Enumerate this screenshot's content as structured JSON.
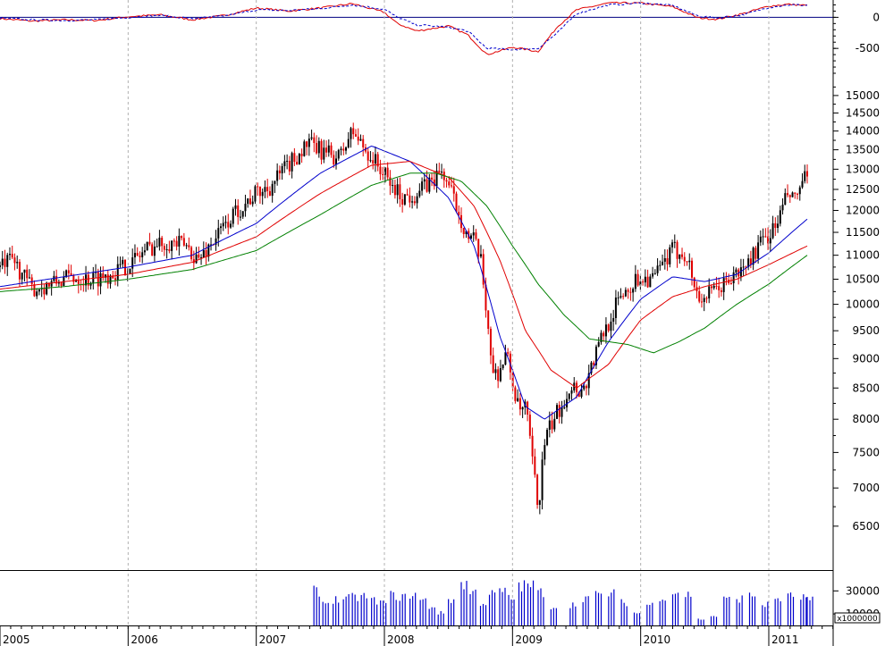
{
  "chart_data": [
    {
      "type": "line",
      "panel": "oscillator",
      "y_ticks": [
        0,
        -500
      ],
      "y_tick_labels": [
        "0",
        "-500"
      ],
      "ylim": [
        -900,
        250
      ],
      "colors": {
        "line": "#e00000",
        "signal": "#0000cc",
        "zero": "#000080"
      },
      "series": [
        {
          "style": "solid",
          "x": [
            2005.0,
            2005.25,
            2005.5,
            2005.75,
            2006.0,
            2006.25,
            2006.5,
            2006.75,
            2007.0,
            2007.25,
            2007.5,
            2007.75,
            2008.0,
            2008.1,
            2008.25,
            2008.5,
            2008.65,
            2008.8,
            2009.0,
            2009.2,
            2009.35,
            2009.5,
            2009.75,
            2010.0,
            2010.25,
            2010.45,
            2010.6,
            2010.8,
            2011.0,
            2011.15,
            2011.3
          ],
          "y": [
            -20,
            -60,
            -40,
            -50,
            10,
            40,
            -40,
            30,
            150,
            100,
            150,
            220,
            80,
            -100,
            -220,
            -140,
            -280,
            -600,
            -480,
            -550,
            -150,
            120,
            230,
            230,
            170,
            -10,
            -30,
            60,
            180,
            210,
            190
          ]
        },
        {
          "style": "dashed",
          "x": [
            2005.0,
            2005.25,
            2005.5,
            2005.75,
            2006.0,
            2006.25,
            2006.5,
            2006.75,
            2007.0,
            2007.25,
            2007.5,
            2007.75,
            2008.0,
            2008.1,
            2008.25,
            2008.5,
            2008.65,
            2008.8,
            2009.0,
            2009.2,
            2009.35,
            2009.5,
            2009.75,
            2010.0,
            2010.25,
            2010.45,
            2010.6,
            2010.8,
            2011.0,
            2011.15,
            2011.3
          ],
          "y": [
            -10,
            -40,
            -50,
            -40,
            0,
            30,
            -20,
            20,
            120,
            110,
            140,
            200,
            130,
            0,
            -120,
            -160,
            -220,
            -500,
            -520,
            -500,
            -250,
            60,
            200,
            230,
            190,
            20,
            -10,
            40,
            160,
            200,
            195
          ]
        }
      ]
    },
    {
      "type": "candlestick",
      "panel": "price",
      "x_ticks": [
        2005,
        2006,
        2007,
        2008,
        2009,
        2010,
        2011
      ],
      "x_tick_labels": [
        "2005",
        "2006",
        "2007",
        "2008",
        "2009",
        "2010",
        "2011"
      ],
      "xlim": [
        2005.0,
        2011.5
      ],
      "y_ticks": [
        6500,
        7000,
        7500,
        8000,
        8500,
        9000,
        9500,
        10000,
        10500,
        11000,
        11500,
        12000,
        12500,
        13000,
        13500,
        14000,
        14500,
        15000
      ],
      "y_tick_labels": [
        "6500",
        "7000",
        "7500",
        "8000",
        "8500",
        "9000",
        "9500",
        "10000",
        "10500",
        "11000",
        "11500",
        "12000",
        "12500",
        "13000",
        "13500",
        "14000",
        "14500",
        "15000"
      ],
      "ylim": [
        6000,
        15500
      ],
      "y_scale": "log",
      "grid": "vertical-dashed",
      "colors": {
        "up": "#000000",
        "down": "#e00000"
      },
      "close_path": {
        "x": [
          2005.0,
          2005.1,
          2005.25,
          2005.4,
          2005.55,
          2005.7,
          2005.85,
          2006.0,
          2006.15,
          2006.3,
          2006.45,
          2006.55,
          2006.7,
          2006.85,
          2007.0,
          2007.1,
          2007.25,
          2007.4,
          2007.55,
          2007.65,
          2007.75,
          2007.85,
          2007.95,
          2008.05,
          2008.15,
          2008.25,
          2008.35,
          2008.45,
          2008.55,
          2008.65,
          2008.7,
          2008.75,
          2008.8,
          2008.85,
          2008.9,
          2008.95,
          2009.0,
          2009.05,
          2009.1,
          2009.15,
          2009.2,
          2009.25,
          2009.3,
          2009.4,
          2009.45,
          2009.55,
          2009.7,
          2009.85,
          2010.0,
          2010.1,
          2010.25,
          2010.35,
          2010.45,
          2010.55,
          2010.65,
          2010.8,
          2010.95,
          2011.05,
          2011.15,
          2011.2,
          2011.25,
          2011.3
        ],
        "y": [
          10750,
          10900,
          10300,
          10400,
          10550,
          10500,
          10600,
          10800,
          11150,
          11300,
          11200,
          10900,
          11450,
          12000,
          12400,
          12550,
          13100,
          13650,
          13400,
          13300,
          14000,
          13500,
          13100,
          12600,
          12300,
          12400,
          12650,
          12950,
          12200,
          11400,
          11300,
          10900,
          9800,
          8700,
          8800,
          9100,
          8600,
          8100,
          8200,
          7450,
          6700,
          7650,
          7900,
          8300,
          8550,
          8450,
          9400,
          10200,
          10550,
          10500,
          11100,
          11050,
          10100,
          10200,
          10400,
          10700,
          11300,
          11600,
          12400,
          12200,
          12600,
          12800
        ]
      },
      "moving_averages": [
        {
          "color": "#0000cc",
          "x": [
            2005.0,
            2005.5,
            2006.0,
            2006.5,
            2007.0,
            2007.5,
            2007.9,
            2008.2,
            2008.5,
            2008.7,
            2008.9,
            2009.1,
            2009.25,
            2009.5,
            2009.75,
            2010.0,
            2010.25,
            2010.5,
            2010.75,
            2011.0,
            2011.3
          ],
          "y": [
            10350,
            10550,
            10750,
            11000,
            11700,
            12900,
            13600,
            13200,
            12300,
            11200,
            9400,
            8200,
            8000,
            8350,
            9300,
            10100,
            10550,
            10450,
            10600,
            11050,
            11800
          ]
        },
        {
          "color": "#e00000",
          "x": [
            2005.0,
            2005.5,
            2006.0,
            2006.5,
            2007.0,
            2007.5,
            2007.9,
            2008.2,
            2008.5,
            2008.7,
            2008.9,
            2009.1,
            2009.3,
            2009.5,
            2009.75,
            2010.0,
            2010.25,
            2010.5,
            2010.75,
            2011.0,
            2011.3
          ],
          "y": [
            10300,
            10450,
            10600,
            10850,
            11400,
            12400,
            13100,
            13200,
            12800,
            12100,
            10900,
            9500,
            8800,
            8500,
            8900,
            9700,
            10150,
            10350,
            10500,
            10800,
            11200
          ]
        },
        {
          "color": "#008000",
          "x": [
            2005.0,
            2005.5,
            2006.0,
            2006.5,
            2007.0,
            2007.5,
            2007.9,
            2008.2,
            2008.4,
            2008.6,
            2008.8,
            2009.0,
            2009.2,
            2009.4,
            2009.6,
            2009.9,
            2010.1,
            2010.3,
            2010.5,
            2010.75,
            2011.0,
            2011.3
          ],
          "y": [
            10250,
            10350,
            10500,
            10700,
            11100,
            11900,
            12600,
            12900,
            12900,
            12700,
            12100,
            11200,
            10400,
            9800,
            9350,
            9250,
            9100,
            9300,
            9550,
            10000,
            10400,
            11000
          ]
        }
      ]
    },
    {
      "type": "bar",
      "panel": "volume",
      "ylabel_multiplier": "x1000000",
      "y_ticks": [
        30000,
        10000
      ],
      "y_tick_labels": [
        "30000",
        "10000"
      ],
      "ylim": [
        0,
        45000
      ],
      "colors": {
        "bar": "#0000cc"
      },
      "x": [
        2007.45,
        2007.52,
        2007.6,
        2007.68,
        2007.75,
        2007.82,
        2007.9,
        2007.97,
        2008.05,
        2008.12,
        2008.2,
        2008.28,
        2008.35,
        2008.42,
        2008.5,
        2008.6,
        2008.67,
        2008.75,
        2008.82,
        2008.9,
        2008.97,
        2009.05,
        2009.12,
        2009.2,
        2009.3,
        2009.45,
        2009.55,
        2009.65,
        2009.75,
        2009.85,
        2009.95,
        2010.05,
        2010.15,
        2010.25,
        2010.35,
        2010.45,
        2010.55,
        2010.65,
        2010.75,
        2010.85,
        2010.95,
        2011.05,
        2011.15,
        2011.25,
        2011.3
      ],
      "values": [
        33000,
        22000,
        25000,
        26000,
        27000,
        28000,
        24000,
        22000,
        29000,
        27000,
        30000,
        24000,
        18000,
        12000,
        25000,
        40000,
        32000,
        22000,
        30000,
        33000,
        26000,
        38000,
        39000,
        32000,
        18000,
        20000,
        27000,
        29000,
        31000,
        22000,
        12000,
        20000,
        28000,
        32000,
        30000,
        6000,
        9000,
        25000,
        26000,
        29000,
        20000,
        26000,
        28000,
        27000,
        24000
      ]
    }
  ]
}
